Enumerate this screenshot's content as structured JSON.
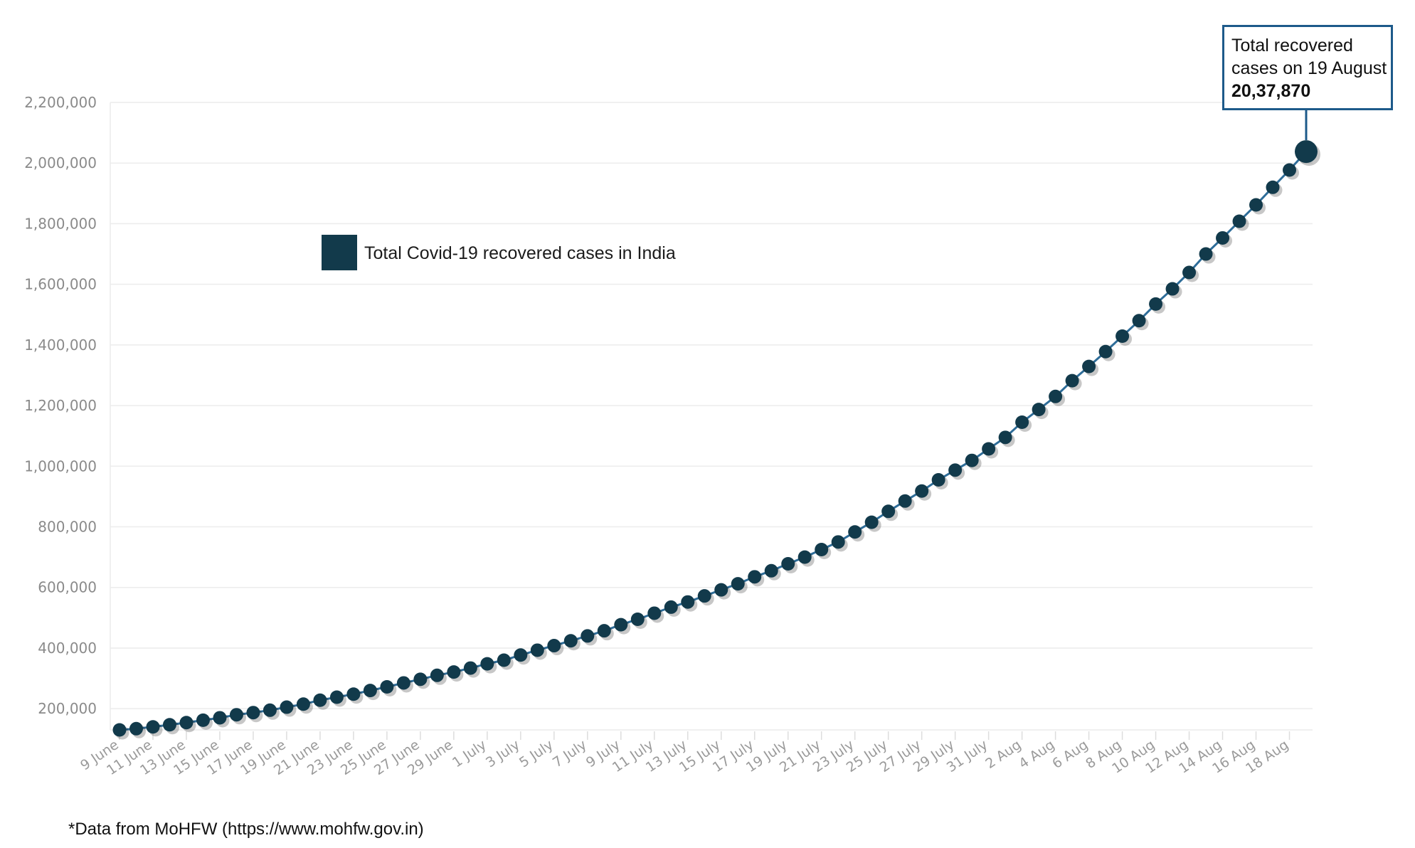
{
  "chart_data": {
    "type": "line",
    "ylim": [
      130000,
      2200000
    ],
    "yticks": [
      "200,000",
      "400,000",
      "600,000",
      "800,000",
      "1,000,000",
      "1,200,000",
      "1,400,000",
      "1,600,000",
      "1,800,000",
      "2,000,000",
      "2,200,000"
    ],
    "ytick_values": [
      200000,
      400000,
      600000,
      800000,
      1000000,
      1200000,
      1400000,
      1600000,
      1800000,
      2000000,
      2200000
    ],
    "grid": true,
    "legend_position": "top-left",
    "series": [
      {
        "name": "Total Covid-19 recovered cases in India",
        "color": "#123a4b",
        "line_color": "#2e6d99",
        "x": [
          "9 June",
          "10 June",
          "11 June",
          "12 June",
          "13 June",
          "14 June",
          "15 June",
          "16 June",
          "17 June",
          "18 June",
          "19 June",
          "20 June",
          "21 June",
          "22 June",
          "23 June",
          "24 June",
          "25 June",
          "26 June",
          "27 June",
          "28 June",
          "29 June",
          "30 June",
          "1 July",
          "2 July",
          "3 July",
          "4 July",
          "5 July",
          "6 July",
          "7 July",
          "8 July",
          "9 July",
          "10 July",
          "11 July",
          "12 July",
          "13 July",
          "14 July",
          "15 July",
          "16 July",
          "17 July",
          "18 July",
          "19 July",
          "20 July",
          "21 July",
          "22 July",
          "23 July",
          "24 July",
          "25 July",
          "26 July",
          "27 July",
          "28 July",
          "29 July",
          "30 July",
          "31 July",
          "1 Aug",
          "2 Aug",
          "3 Aug",
          "4 Aug",
          "5 Aug",
          "6 Aug",
          "7 Aug",
          "8 Aug",
          "9 Aug",
          "10 Aug",
          "11 Aug",
          "12 Aug",
          "13 Aug",
          "14 Aug",
          "15 Aug",
          "16 Aug",
          "17 Aug",
          "18 Aug",
          "19 Aug"
        ],
        "values": [
          130000,
          134000,
          140000,
          147000,
          154000,
          162000,
          170000,
          180000,
          187000,
          195000,
          205000,
          215000,
          228000,
          238000,
          248000,
          260000,
          272000,
          285000,
          297000,
          310000,
          321000,
          334000,
          348000,
          360000,
          377000,
          393000,
          408000,
          424000,
          440000,
          457000,
          477000,
          495000,
          515000,
          535000,
          552000,
          572000,
          592000,
          612000,
          635000,
          655000,
          678000,
          700000,
          725000,
          750000,
          783000,
          815000,
          851000,
          885000,
          918000,
          955000,
          987000,
          1019000,
          1057000,
          1095000,
          1145000,
          1187000,
          1230000,
          1282000,
          1329000,
          1378000,
          1429000,
          1480000,
          1535000,
          1585000,
          1639000,
          1700000,
          1753000,
          1808000,
          1862000,
          1920000,
          1977000,
          2037870
        ]
      }
    ],
    "xtick_labels": [
      "9 June",
      "11 June",
      "13 June",
      "15 June",
      "17 June",
      "19 June",
      "21 June",
      "23 June",
      "25 June",
      "27 June",
      "29 June",
      "1 July",
      "3 July",
      "5 July",
      "7 July",
      "9 July",
      "11 July",
      "13 July",
      "15 July",
      "17 July",
      "19 July",
      "21 July",
      "23 July",
      "25 July",
      "27 July",
      "29 July",
      "31 July",
      "2 Aug",
      "4 Aug",
      "6 Aug",
      "8 Aug",
      "10 Aug",
      "12 Aug",
      "14 Aug",
      "16 Aug",
      "18 Aug"
    ],
    "annotation": {
      "line1": "Total recovered",
      "line2": "cases on 19 August",
      "value": "20,37,870",
      "border_color": "#1d5a8a"
    }
  },
  "footnote": "*Data from MoHFW (https://www.mohfw.gov.in)"
}
